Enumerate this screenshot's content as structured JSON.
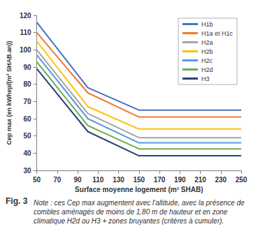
{
  "chart_data": {
    "type": "line",
    "x": [
      50,
      100,
      150,
      250
    ],
    "series": [
      {
        "name": "H1b",
        "color": "#4472C4",
        "values": [
          116,
          78,
          65,
          65
        ]
      },
      {
        "name": "H1a et H1c",
        "color": "#ED7D31",
        "values": [
          110,
          75,
          61,
          61
        ]
      },
      {
        "name": "H2a",
        "color": "#A5A5A5",
        "values": [
          100,
          63,
          49,
          49
        ]
      },
      {
        "name": "H2b",
        "color": "#FFC000",
        "values": [
          105,
          67,
          54,
          54
        ]
      },
      {
        "name": "H2c",
        "color": "#5B9BD5",
        "values": [
          97,
          60,
          46,
          46
        ]
      },
      {
        "name": "H2d",
        "color": "#70AD47",
        "values": [
          93,
          56,
          42.5,
          42.5
        ]
      },
      {
        "name": "H3",
        "color": "#264478",
        "values": [
          89,
          52.5,
          38.5,
          38.5
        ]
      }
    ],
    "xlabel": "Surface moyenne logement (m² SHAB)",
    "ylabel": "Cep max (en kWhep/(m² SHAB.an))",
    "xlim": [
      50,
      250
    ],
    "ylim": [
      30,
      120
    ],
    "xticks": [
      50,
      70,
      90,
      110,
      130,
      150,
      170,
      190,
      210,
      230,
      250
    ],
    "yticks": [
      30,
      40,
      50,
      60,
      70,
      80,
      90,
      100,
      110,
      120
    ],
    "grid": false,
    "legend": "upper right",
    "line_style": "solid",
    "figure_label": "Fig. 3",
    "note": "Note : ces Cep max augmentent avec l'altitude, avec la présence de combles aménagés de moins de 1,80 m de hauteur et en zone climatique H2d ou H3 + zones bruyantes (critères à cumuler)."
  }
}
